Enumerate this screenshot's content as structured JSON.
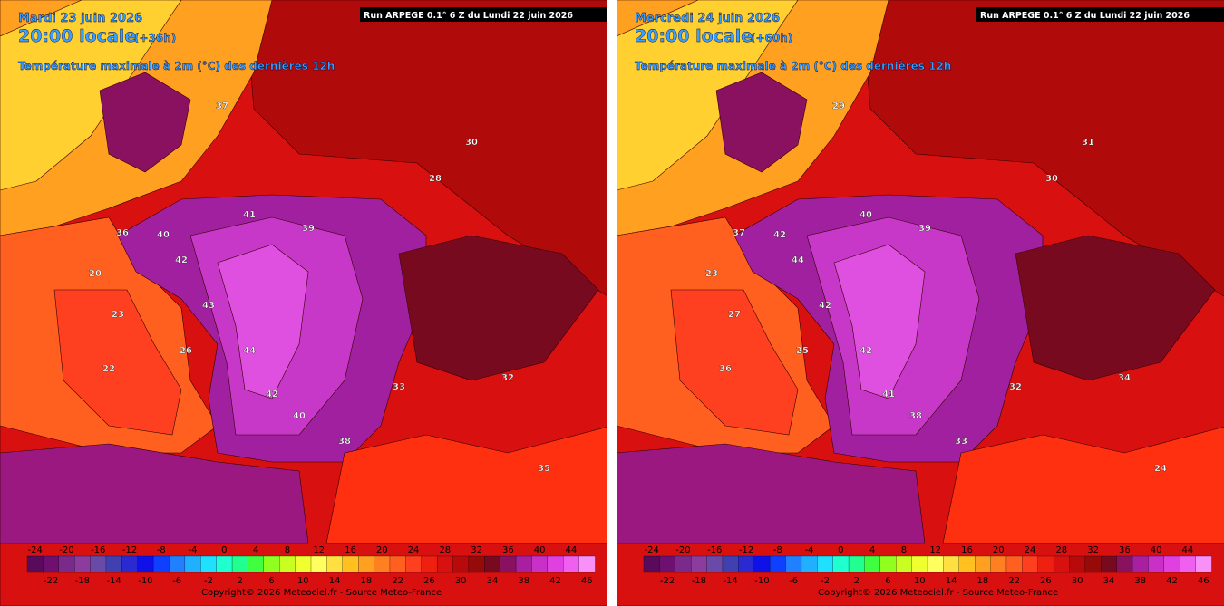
{
  "panels": [
    {
      "date": "Mardi 23 juin 2026",
      "time": "20:00 locale",
      "lead": "(+36h)",
      "subtitle": "Température maximale à 2m (°C) des dernières 12h",
      "run": "Run ARPEGE 0.1° 6 Z du Lundi 22 juin 2026",
      "labels": [
        "36",
        "40",
        "42",
        "43",
        "41",
        "39",
        "44",
        "42",
        "40",
        "38",
        "33",
        "32",
        "35",
        "20",
        "23",
        "26",
        "22",
        "37",
        "28",
        "30"
      ]
    },
    {
      "date": "Mercredi 24 juin 2026",
      "time": "20:00 locale",
      "lead": "(+60h)",
      "subtitle": "Température maximale à 2m (°C) des dernières 12h",
      "run": "Run ARPEGE 0.1° 6 Z du Lundi 22 juin 2026",
      "labels": [
        "37",
        "42",
        "44",
        "42",
        "40",
        "39",
        "42",
        "41",
        "38",
        "33",
        "32",
        "34",
        "24",
        "23",
        "27",
        "25",
        "36",
        "29",
        "30",
        "31"
      ]
    }
  ],
  "scale": {
    "ticks_top": [
      "-24",
      "-20",
      "-16",
      "-12",
      "-8",
      "-4",
      "0",
      "4",
      "8",
      "12",
      "16",
      "20",
      "24",
      "28",
      "32",
      "36",
      "40",
      "44"
    ],
    "ticks_bottom": [
      "-22",
      "-18",
      "-14",
      "-10",
      "-6",
      "-2",
      "2",
      "6",
      "10",
      "14",
      "18",
      "22",
      "26",
      "30",
      "34",
      "38",
      "42",
      "46"
    ],
    "colors": [
      "#5a0a5a",
      "#6e1070",
      "#7a2a8a",
      "#8c3c9c",
      "#6a4aa8",
      "#4040b0",
      "#2a2ad0",
      "#1010e8",
      "#1040ff",
      "#2080ff",
      "#20b0ff",
      "#20e0ff",
      "#20ffd0",
      "#20ff90",
      "#40ff40",
      "#90ff20",
      "#c8ff20",
      "#f0ff30",
      "#ffff60",
      "#ffe040",
      "#ffc020",
      "#ffa020",
      "#ff8020",
      "#ff6020",
      "#ff4020",
      "#f02010",
      "#d81010",
      "#b80a0a",
      "#960a0a",
      "#780a20",
      "#8a1060",
      "#a820a0",
      "#c830c8",
      "#e040e0",
      "#f060f0",
      "#f890f8"
    ]
  },
  "copyright": "Copyright© 2026 Meteociel.fr - Source Meteo-France"
}
